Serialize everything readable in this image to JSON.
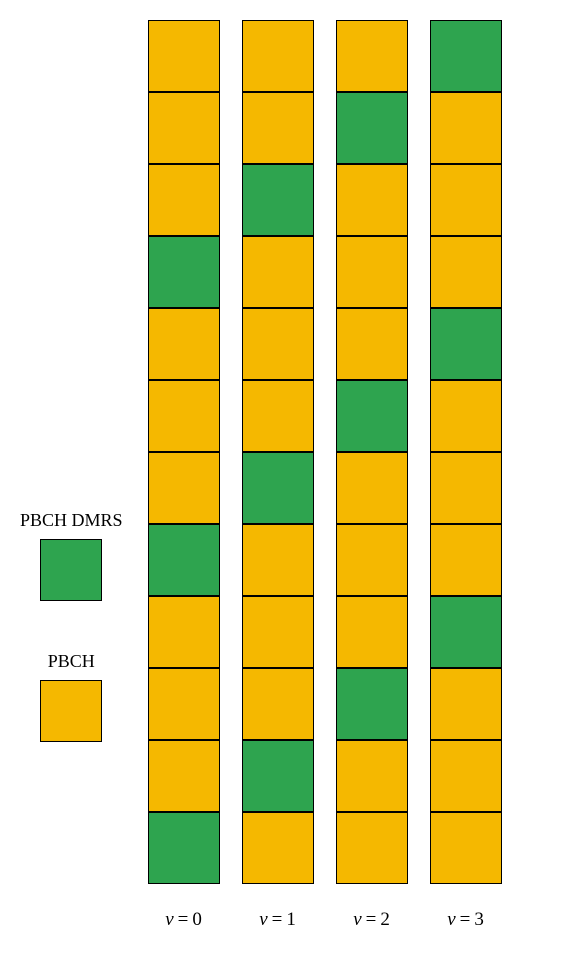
{
  "colors": {
    "dmrs": "#2ea44f",
    "pbch": "#f5b800",
    "border": "#000000",
    "background": "#ffffff"
  },
  "cell_size": 72,
  "legend_box_size": 62,
  "num_rows": 12,
  "legend": [
    {
      "label": "PBCH DMRS",
      "color_key": "dmrs"
    },
    {
      "label": "PBCH",
      "color_key": "pbch"
    }
  ],
  "columns": [
    {
      "v": 0,
      "label_prefix": "v",
      "cells": [
        "pbch",
        "pbch",
        "pbch",
        "dmrs",
        "pbch",
        "pbch",
        "pbch",
        "dmrs",
        "pbch",
        "pbch",
        "pbch",
        "dmrs"
      ]
    },
    {
      "v": 1,
      "label_prefix": "v",
      "cells": [
        "pbch",
        "pbch",
        "dmrs",
        "pbch",
        "pbch",
        "pbch",
        "dmrs",
        "pbch",
        "pbch",
        "pbch",
        "dmrs",
        "pbch"
      ]
    },
    {
      "v": 2,
      "label_prefix": "v",
      "cells": [
        "pbch",
        "dmrs",
        "pbch",
        "pbch",
        "pbch",
        "dmrs",
        "pbch",
        "pbch",
        "pbch",
        "dmrs",
        "pbch",
        "pbch"
      ]
    },
    {
      "v": 3,
      "label_prefix": "v",
      "cells": [
        "dmrs",
        "pbch",
        "pbch",
        "pbch",
        "dmrs",
        "pbch",
        "pbch",
        "pbch",
        "dmrs",
        "pbch",
        "pbch",
        "pbch"
      ]
    }
  ]
}
